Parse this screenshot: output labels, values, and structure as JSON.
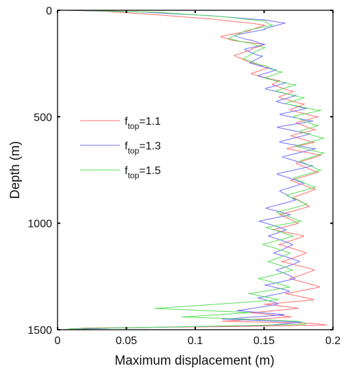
{
  "chart_data": {
    "type": "line",
    "title": "",
    "xlabel": "Maximum displacement (m)",
    "ylabel": "Depth (m)",
    "xlim": [
      0,
      0.2
    ],
    "ylim": [
      0,
      1500
    ],
    "y_inverted": true,
    "grid": false,
    "xticks": [
      0,
      0.05,
      0.1,
      0.15,
      0.2
    ],
    "xtick_labels": [
      "0",
      "0.05",
      "0.1",
      "0.15",
      "0.2"
    ],
    "yticks": [
      0,
      500,
      1000,
      1500
    ],
    "ytick_labels": [
      "0",
      "500",
      "1000",
      "1500"
    ],
    "legend": {
      "placement": "upper-left",
      "entries": [
        {
          "base": "f",
          "sub": "top",
          "value": "=1.1",
          "color": "#ff6b6b"
        },
        {
          "base": "f",
          "sub": "top",
          "value": "=1.3",
          "color": "#6b6bff"
        },
        {
          "base": "f",
          "sub": "top",
          "value": "=1.5",
          "color": "#55dd55"
        }
      ]
    },
    "series": [
      {
        "name": "ftop=1.1",
        "color": "#ff6b6b",
        "points": [
          [
            0.005,
            0
          ],
          [
            0.035,
            5
          ],
          [
            0.07,
            20
          ],
          [
            0.11,
            40
          ],
          [
            0.14,
            60
          ],
          [
            0.15,
            70
          ],
          [
            0.14,
            95
          ],
          [
            0.118,
            125
          ],
          [
            0.13,
            145
          ],
          [
            0.15,
            160
          ],
          [
            0.14,
            185
          ],
          [
            0.128,
            215
          ],
          [
            0.143,
            250
          ],
          [
            0.152,
            270
          ],
          [
            0.14,
            300
          ],
          [
            0.16,
            330
          ],
          [
            0.155,
            350
          ],
          [
            0.17,
            380
          ],
          [
            0.16,
            410
          ],
          [
            0.178,
            440
          ],
          [
            0.168,
            470
          ],
          [
            0.188,
            500
          ],
          [
            0.172,
            530
          ],
          [
            0.186,
            560
          ],
          [
            0.168,
            590
          ],
          [
            0.185,
            620
          ],
          [
            0.165,
            650
          ],
          [
            0.19,
            680
          ],
          [
            0.172,
            720
          ],
          [
            0.188,
            760
          ],
          [
            0.168,
            800
          ],
          [
            0.186,
            840
          ],
          [
            0.17,
            880
          ],
          [
            0.182,
            920
          ],
          [
            0.16,
            960
          ],
          [
            0.174,
            1000
          ],
          [
            0.155,
            1030
          ],
          [
            0.178,
            1060
          ],
          [
            0.16,
            1100
          ],
          [
            0.18,
            1140
          ],
          [
            0.162,
            1180
          ],
          [
            0.186,
            1220
          ],
          [
            0.168,
            1260
          ],
          [
            0.19,
            1300
          ],
          [
            0.165,
            1330
          ],
          [
            0.186,
            1360
          ],
          [
            0.15,
            1380
          ],
          [
            0.175,
            1400
          ],
          [
            0.14,
            1420
          ],
          [
            0.17,
            1440
          ],
          [
            0.12,
            1460
          ],
          [
            0.185,
            1470
          ],
          [
            0.196,
            1478
          ],
          [
            0.13,
            1485
          ],
          [
            0.02,
            1492
          ],
          [
            0.005,
            1500
          ]
        ]
      },
      {
        "name": "ftop=1.3",
        "color": "#6b6bff",
        "points": [
          [
            0.01,
            0
          ],
          [
            0.06,
            8
          ],
          [
            0.11,
            25
          ],
          [
            0.15,
            45
          ],
          [
            0.165,
            60
          ],
          [
            0.15,
            90
          ],
          [
            0.128,
            120
          ],
          [
            0.14,
            140
          ],
          [
            0.15,
            160
          ],
          [
            0.135,
            185
          ],
          [
            0.148,
            215
          ],
          [
            0.14,
            250
          ],
          [
            0.158,
            280
          ],
          [
            0.145,
            310
          ],
          [
            0.165,
            340
          ],
          [
            0.15,
            370
          ],
          [
            0.172,
            400
          ],
          [
            0.158,
            430
          ],
          [
            0.18,
            460
          ],
          [
            0.16,
            490
          ],
          [
            0.184,
            520
          ],
          [
            0.158,
            550
          ],
          [
            0.182,
            580
          ],
          [
            0.16,
            620
          ],
          [
            0.186,
            650
          ],
          [
            0.162,
            690
          ],
          [
            0.184,
            730
          ],
          [
            0.158,
            770
          ],
          [
            0.178,
            810
          ],
          [
            0.16,
            850
          ],
          [
            0.172,
            890
          ],
          [
            0.15,
            930
          ],
          [
            0.168,
            960
          ],
          [
            0.145,
            990
          ],
          [
            0.165,
            1030
          ],
          [
            0.152,
            1060
          ],
          [
            0.17,
            1100
          ],
          [
            0.156,
            1140
          ],
          [
            0.175,
            1180
          ],
          [
            0.158,
            1220
          ],
          [
            0.172,
            1260
          ],
          [
            0.15,
            1290
          ],
          [
            0.168,
            1320
          ],
          [
            0.145,
            1350
          ],
          [
            0.16,
            1380
          ],
          [
            0.13,
            1410
          ],
          [
            0.165,
            1430
          ],
          [
            0.12,
            1450
          ],
          [
            0.178,
            1465
          ],
          [
            0.15,
            1480
          ],
          [
            0.04,
            1492
          ],
          [
            0.008,
            1500
          ]
        ]
      },
      {
        "name": "ftop=1.5",
        "color": "#55dd55",
        "points": [
          [
            0.015,
            0
          ],
          [
            0.075,
            10
          ],
          [
            0.12,
            30
          ],
          [
            0.15,
            50
          ],
          [
            0.156,
            70
          ],
          [
            0.135,
            100
          ],
          [
            0.125,
            135
          ],
          [
            0.14,
            155
          ],
          [
            0.15,
            175
          ],
          [
            0.142,
            200
          ],
          [
            0.135,
            230
          ],
          [
            0.15,
            260
          ],
          [
            0.162,
            290
          ],
          [
            0.15,
            320
          ],
          [
            0.172,
            350
          ],
          [
            0.158,
            380
          ],
          [
            0.178,
            410
          ],
          [
            0.165,
            440
          ],
          [
            0.19,
            470
          ],
          [
            0.17,
            500
          ],
          [
            0.188,
            540
          ],
          [
            0.175,
            570
          ],
          [
            0.192,
            600
          ],
          [
            0.172,
            640
          ],
          [
            0.192,
            670
          ],
          [
            0.175,
            710
          ],
          [
            0.19,
            750
          ],
          [
            0.17,
            790
          ],
          [
            0.186,
            830
          ],
          [
            0.165,
            870
          ],
          [
            0.18,
            910
          ],
          [
            0.158,
            950
          ],
          [
            0.176,
            990
          ],
          [
            0.15,
            1020
          ],
          [
            0.17,
            1060
          ],
          [
            0.148,
            1100
          ],
          [
            0.168,
            1140
          ],
          [
            0.152,
            1180
          ],
          [
            0.17,
            1220
          ],
          [
            0.145,
            1260
          ],
          [
            0.168,
            1300
          ],
          [
            0.138,
            1330
          ],
          [
            0.16,
            1360
          ],
          [
            0.07,
            1400
          ],
          [
            0.14,
            1420
          ],
          [
            0.09,
            1440
          ],
          [
            0.175,
            1460
          ],
          [
            0.18,
            1475
          ],
          [
            0.1,
            1485
          ],
          [
            0.01,
            1495
          ],
          [
            0.005,
            1500
          ]
        ]
      }
    ]
  }
}
